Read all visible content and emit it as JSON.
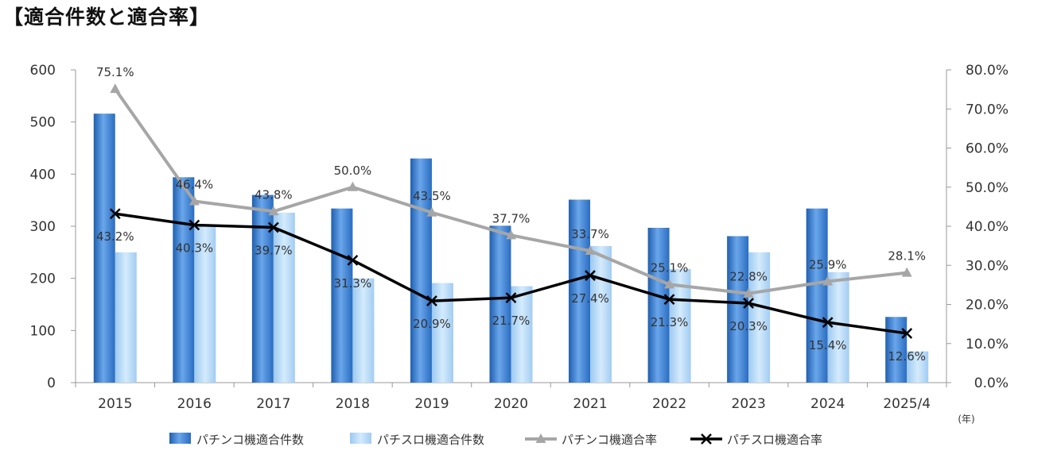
{
  "chart_data": {
    "type": "bar",
    "title": "【適合件数と適合率】",
    "categories": [
      "2015",
      "2016",
      "2017",
      "2018",
      "2019",
      "2020",
      "2021",
      "2022",
      "2023",
      "2024",
      "2025/4"
    ],
    "x_unit_label": "(年)",
    "left_axis": {
      "range": [
        0,
        600
      ],
      "ticks": [
        "0",
        "100",
        "200",
        "300",
        "400",
        "500",
        "600"
      ],
      "tick_values": [
        0,
        100,
        200,
        300,
        400,
        500,
        600
      ]
    },
    "right_axis": {
      "range": [
        0,
        80
      ],
      "ticks": [
        "0.0%",
        "10.0%",
        "20.0%",
        "30.0%",
        "40.0%",
        "50.0%",
        "60.0%",
        "70.0%",
        "80.0%"
      ],
      "tick_values": [
        0,
        10,
        20,
        30,
        40,
        50,
        60,
        70,
        80
      ]
    },
    "series": [
      {
        "name": "パチンコ機適合件数",
        "type": "bar",
        "axis": "left",
        "color": "#3a7fd0",
        "values": [
          516,
          394,
          360,
          334,
          430,
          301,
          351,
          297,
          281,
          334,
          126
        ]
      },
      {
        "name": "パチスロ機適合件数",
        "type": "bar",
        "axis": "left",
        "color": "#a9d3f5",
        "values": [
          250,
          300,
          326,
          200,
          191,
          185,
          262,
          218,
          250,
          212,
          60
        ]
      },
      {
        "name": "パチンコ機適合率",
        "type": "line",
        "axis": "right",
        "color": "#a6a6a6",
        "marker": "triangle",
        "values": [
          75.1,
          46.4,
          43.8,
          50.0,
          43.5,
          37.7,
          33.7,
          25.1,
          22.8,
          25.9,
          28.1
        ],
        "labels": [
          "75.1%",
          "46.4%",
          "43.8%",
          "50.0%",
          "43.5%",
          "37.7%",
          "33.7%",
          "25.1%",
          "22.8%",
          "25.9%",
          "28.1%"
        ]
      },
      {
        "name": "パチスロ機適合率",
        "type": "line",
        "axis": "right",
        "color": "#000000",
        "marker": "x",
        "values": [
          43.2,
          40.3,
          39.7,
          31.3,
          20.9,
          21.7,
          27.4,
          21.3,
          20.3,
          15.4,
          12.6
        ],
        "labels": [
          "43.2%",
          "40.3%",
          "39.7%",
          "31.3%",
          "20.9%",
          "21.7%",
          "27.4%",
          "21.3%",
          "20.3%",
          "15.4%",
          "12.6%"
        ]
      }
    ],
    "legend": [
      "パチンコ機適合件数",
      "パチスロ機適合件数",
      "パチンコ機適合率",
      "パチスロ機適合率"
    ],
    "legend_position": "bottom"
  }
}
